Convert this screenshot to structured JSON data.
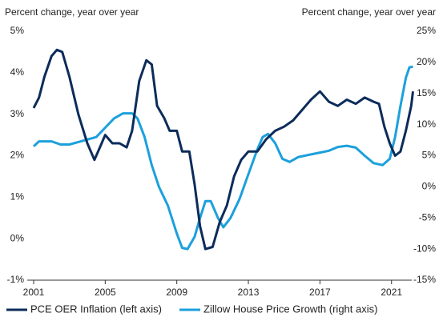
{
  "chart_data": {
    "type": "line",
    "ylabel": "Percent change, year over year",
    "y2label": "Percent change, year over year",
    "xlim": [
      2001,
      2022.4
    ],
    "xticks": [
      2001,
      2005,
      2009,
      2013,
      2017,
      2021
    ],
    "ylim": [
      -1,
      5
    ],
    "yticks": [
      {
        "value": -1,
        "label": "-1%"
      },
      {
        "value": 0,
        "label": "0%"
      },
      {
        "value": 1,
        "label": "1%"
      },
      {
        "value": 2,
        "label": "2%"
      },
      {
        "value": 3,
        "label": "3%"
      },
      {
        "value": 4,
        "label": "4%"
      },
      {
        "value": 5,
        "label": "5%"
      }
    ],
    "y2lim": [
      -15,
      25
    ],
    "y2ticks": [
      {
        "value": -15,
        "label": "-15%"
      },
      {
        "value": -10,
        "label": "-10%"
      },
      {
        "value": -5,
        "label": "-5%"
      },
      {
        "value": 0,
        "label": "0%"
      },
      {
        "value": 5,
        "label": "5%"
      },
      {
        "value": 10,
        "label": "10%"
      },
      {
        "value": 15,
        "label": "15%"
      },
      {
        "value": 20,
        "label": "20%"
      },
      {
        "value": 25,
        "label": "25%"
      }
    ],
    "grid": false,
    "series": [
      {
        "name": "PCE OER Inflation (left axis)",
        "color": "#0c2c5a",
        "axis": "y",
        "x": [
          2001.0,
          2001.3,
          2001.6,
          2002.0,
          2002.3,
          2002.6,
          2003.0,
          2003.5,
          2004.0,
          2004.4,
          2004.8,
          2005.0,
          2005.4,
          2005.8,
          2006.2,
          2006.5,
          2006.9,
          2007.3,
          2007.6,
          2007.9,
          2008.3,
          2008.6,
          2009.0,
          2009.3,
          2009.7,
          2010.0,
          2010.3,
          2010.6,
          2011.0,
          2011.4,
          2011.8,
          2012.2,
          2012.6,
          2013.0,
          2013.5,
          2014.0,
          2014.5,
          2015.0,
          2015.5,
          2016.0,
          2016.5,
          2017.0,
          2017.5,
          2018.0,
          2018.5,
          2019.0,
          2019.5,
          2020.0,
          2020.3,
          2020.6,
          2020.9,
          2021.2,
          2021.5,
          2021.8,
          2022.1,
          2022.2
        ],
        "values": [
          3.15,
          3.4,
          3.9,
          4.4,
          4.55,
          4.5,
          3.9,
          3.0,
          2.3,
          1.9,
          2.3,
          2.5,
          2.3,
          2.3,
          2.2,
          2.6,
          3.8,
          4.3,
          4.2,
          3.2,
          2.9,
          2.6,
          2.6,
          2.1,
          2.1,
          1.3,
          0.3,
          -0.25,
          -0.2,
          0.4,
          0.8,
          1.5,
          1.9,
          2.1,
          2.1,
          2.4,
          2.6,
          2.7,
          2.85,
          3.1,
          3.35,
          3.55,
          3.3,
          3.2,
          3.35,
          3.25,
          3.4,
          3.3,
          3.25,
          2.7,
          2.3,
          2.0,
          2.1,
          2.6,
          3.2,
          3.55
        ]
      },
      {
        "name": "Zillow House Price Growth (right axis)",
        "color": "#1ca0dc",
        "axis": "y2",
        "x": [
          2001.0,
          2001.3,
          2002.0,
          2002.5,
          2003.0,
          2003.5,
          2004.0,
          2004.5,
          2005.0,
          2005.5,
          2006.0,
          2006.5,
          2006.8,
          2007.2,
          2007.6,
          2008.0,
          2008.5,
          2009.0,
          2009.3,
          2009.6,
          2010.0,
          2010.3,
          2010.6,
          2010.9,
          2011.3,
          2011.6,
          2012.0,
          2012.5,
          2013.0,
          2013.5,
          2013.8,
          2014.1,
          2014.5,
          2014.9,
          2015.3,
          2015.8,
          2016.5,
          2017.0,
          2017.5,
          2018.0,
          2018.5,
          2019.0,
          2019.5,
          2020.0,
          2020.5,
          2020.9,
          2021.2,
          2021.5,
          2021.8,
          2022.0,
          2022.2
        ],
        "values": [
          6.5,
          7.3,
          7.3,
          6.8,
          6.8,
          7.2,
          7.6,
          8.0,
          9.5,
          11,
          11.8,
          11.8,
          11,
          8,
          3.5,
          0,
          -3,
          -7.5,
          -9.8,
          -10,
          -8,
          -5,
          -2.3,
          -2.3,
          -5,
          -6.5,
          -5,
          -2,
          2,
          6,
          8,
          8.5,
          7,
          4.5,
          4,
          4.8,
          5.2,
          5.5,
          5.8,
          6.4,
          6.6,
          6.3,
          5,
          3.8,
          3.5,
          4.5,
          8,
          13,
          17.5,
          19.2,
          19.3
        ]
      }
    ]
  }
}
